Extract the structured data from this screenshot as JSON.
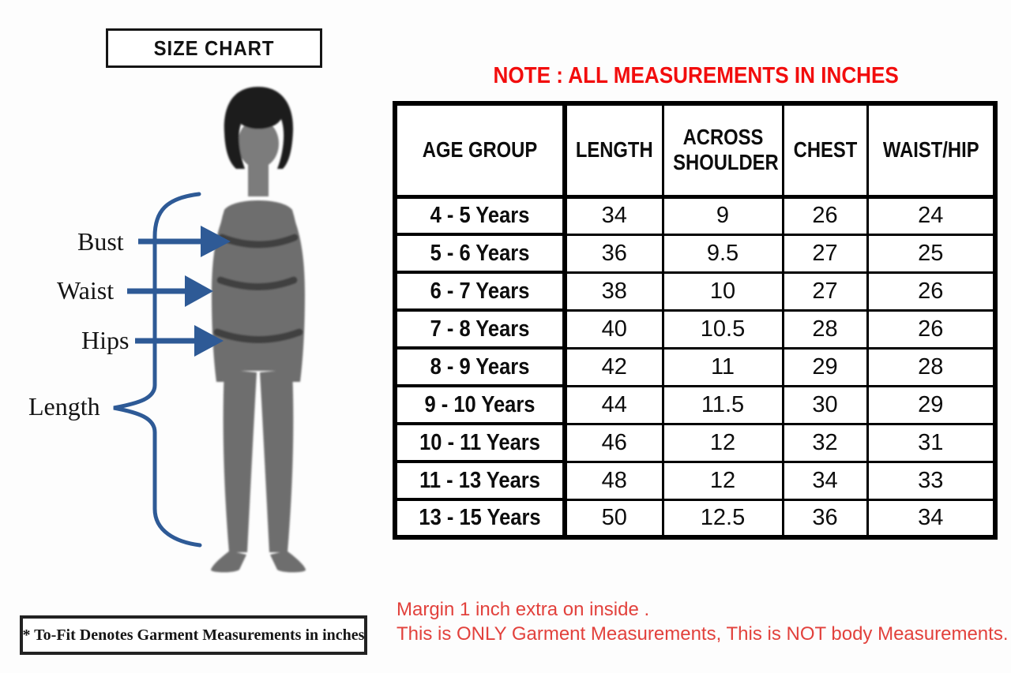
{
  "title_box": {
    "label": "SIZE CHART"
  },
  "note": {
    "text": "NOTE : ALL MEASUREMENTS IN INCHES",
    "color": "#f20d0d"
  },
  "diagram": {
    "labels": {
      "bust": "Bust",
      "waist": "Waist",
      "hips": "Hips",
      "length": "Length"
    },
    "arrow_color": "#2e5a96",
    "figure_color": "#6e6e6e",
    "face_color": "#7b7b7b",
    "hair_color": "#1c1c1c",
    "band_color": "#3f3f3f"
  },
  "table": {
    "columns": [
      "AGE GROUP",
      "LENGTH",
      "ACROSS SHOULDER",
      "CHEST",
      "WAIST/HIP"
    ],
    "rows": [
      [
        "4 - 5 Years",
        "34",
        "9",
        "26",
        "24"
      ],
      [
        "5 - 6 Years",
        "36",
        "9.5",
        "27",
        "25"
      ],
      [
        "6 - 7 Years",
        "38",
        "10",
        "27",
        "26"
      ],
      [
        "7 - 8 Years",
        "40",
        "10.5",
        "28",
        "26"
      ],
      [
        "8 - 9 Years",
        "42",
        "11",
        "29",
        "28"
      ],
      [
        "9 - 10 Years",
        "44",
        "11.5",
        "30",
        "29"
      ],
      [
        "10 - 11 Years",
        "46",
        "12",
        "32",
        "31"
      ],
      [
        "11 - 13 Years",
        "48",
        "12",
        "34",
        "33"
      ],
      [
        "13 - 15 Years",
        "50",
        "12.5",
        "36",
        "34"
      ]
    ]
  },
  "footnote": "* To-Fit Denotes Garment Measurements in inches",
  "footer_notes": {
    "line1": "Margin 1 inch extra on inside .",
    "line2": "This is ONLY Garment Measurements, This is NOT body Measurements.",
    "color": "#e2413c"
  },
  "chart_data": {
    "type": "table",
    "title": "SIZE CHART",
    "note": "NOTE : ALL MEASUREMENTS IN INCHES",
    "units": "inches",
    "columns": [
      "AGE GROUP",
      "LENGTH",
      "ACROSS SHOULDER",
      "CHEST",
      "WAIST/HIP"
    ],
    "rows": [
      [
        "4 - 5 Years",
        34,
        9,
        26,
        24
      ],
      [
        "5 - 6 Years",
        36,
        9.5,
        27,
        25
      ],
      [
        "6 - 7 Years",
        38,
        10,
        27,
        26
      ],
      [
        "7 - 8 Years",
        40,
        10.5,
        28,
        26
      ],
      [
        "8 - 9 Years",
        42,
        11,
        29,
        28
      ],
      [
        "9 - 10 Years",
        44,
        11.5,
        30,
        29
      ],
      [
        "10 - 11 Years",
        46,
        12,
        32,
        31
      ],
      [
        "11 - 13 Years",
        48,
        12,
        34,
        33
      ],
      [
        "13 - 15 Years",
        50,
        12.5,
        36,
        34
      ]
    ],
    "footnotes": [
      "* To-Fit Denotes Garment Measurements in inches",
      "Margin 1 inch extra on inside .",
      "This is ONLY Garment Measurements, This is NOT body Measurements."
    ]
  }
}
